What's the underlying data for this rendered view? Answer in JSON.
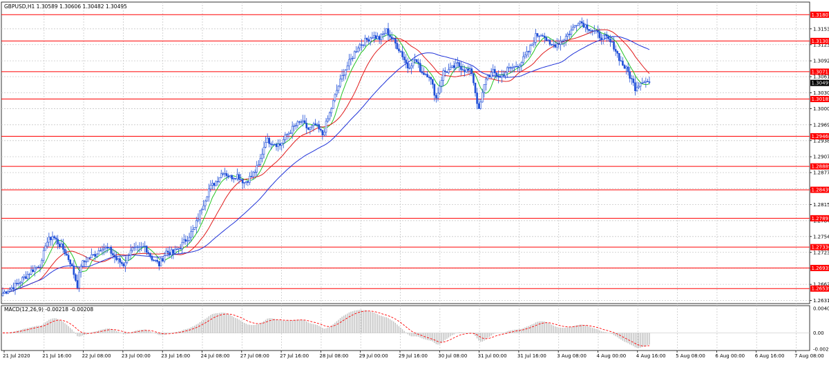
{
  "header": {
    "symbol_line": "GBPUSD,H1  1.30589 1.30606 1.30482 1.30495",
    "macd_line": "MACD(12,26,9) -0.00218 -0.00208"
  },
  "colors": {
    "candles": "#1f4fd8",
    "ma_fast": "#22c322",
    "ma_mid": "#e01b1b",
    "ma_slow": "#1f32d8",
    "levels": "#ff0000",
    "grid": "#c8c8c8",
    "macd_hist": "#c0c0c0",
    "macd_signal": "#ff0000",
    "current_price_tag": "#000000"
  },
  "chart_data": [
    {
      "type": "candlestick",
      "symbol": "GBPUSD",
      "timeframe": "H1",
      "last_bar": {
        "open": 1.30589,
        "high": 1.30606,
        "low": 1.30482,
        "close": 1.30495
      },
      "y_range": [
        1.2625,
        1.3205
      ],
      "price_axis_labels": [
        "1.31535",
        "1.31230",
        "1.30920",
        "1.30615",
        "1.30305",
        "1.30000",
        "1.29690",
        "1.29385",
        "1.29075",
        "1.28770",
        "1.28460",
        "1.28155",
        "1.27845",
        "1.27540",
        "1.27235",
        "1.26930",
        "1.26620",
        "1.26310"
      ],
      "price_axis_values": [
        1.31535,
        1.3123,
        1.3092,
        1.30615,
        1.30305,
        1.3,
        1.2969,
        1.29385,
        1.29075,
        1.2877,
        1.2846,
        1.28155,
        1.27845,
        1.2754,
        1.27235,
        1.2693,
        1.2662,
        1.2631
      ],
      "horizontal_levels": [
        "1.31807",
        "1.31302",
        "1.30711",
        "1.30185",
        "1.29468",
        "1.28889",
        "1.28439",
        "1.27891",
        "1.27336",
        "1.26935",
        "1.26539"
      ],
      "current_price_label": "1.30495",
      "x_labels": [
        "21 Jul 2020",
        "21 Jul 16:00",
        "22 Jul 08:00",
        "23 Jul 00:00",
        "23 Jul 16:00",
        "24 Jul 08:00",
        "27 Jul 08:00",
        "27 Jul 16:00",
        "28 Jul 08:00",
        "29 Jul 00:00",
        "29 Jul 16:00",
        "30 Jul 08:00",
        "31 Jul 00:00",
        "31 Jul 16:00",
        "3 Aug 08:00",
        "4 Aug 00:00",
        "4 Aug 16:00",
        "5 Aug 08:00",
        "6 Aug 00:00",
        "6 Aug 16:00",
        "7 Aug 08:00"
      ],
      "price_path": [
        [
          0,
          1.2645
        ],
        [
          8,
          1.2662
        ],
        [
          16,
          1.2688
        ],
        [
          22,
          1.2703
        ],
        [
          24,
          1.274
        ],
        [
          28,
          1.2755
        ],
        [
          34,
          1.273
        ],
        [
          38,
          1.2705
        ],
        [
          42,
          1.266
        ],
        [
          44,
          1.27
        ],
        [
          48,
          1.2712
        ],
        [
          52,
          1.272
        ],
        [
          56,
          1.2735
        ],
        [
          60,
          1.2728
        ],
        [
          64,
          1.271
        ],
        [
          68,
          1.27
        ],
        [
          72,
          1.273
        ],
        [
          76,
          1.2728
        ],
        [
          80,
          1.2735
        ],
        [
          84,
          1.2712
        ],
        [
          88,
          1.27
        ],
        [
          92,
          1.2725
        ],
        [
          96,
          1.2722
        ],
        [
          100,
          1.2735
        ],
        [
          104,
          1.2752
        ],
        [
          108,
          1.277
        ],
        [
          112,
          1.281
        ],
        [
          116,
          1.2845
        ],
        [
          120,
          1.286
        ],
        [
          124,
          1.288
        ],
        [
          128,
          1.2868
        ],
        [
          132,
          1.2872
        ],
        [
          136,
          1.2858
        ],
        [
          140,
          1.287
        ],
        [
          144,
          1.289
        ],
        [
          148,
          1.294
        ],
        [
          152,
          1.2935
        ],
        [
          156,
          1.293
        ],
        [
          160,
          1.295
        ],
        [
          164,
          1.2965
        ],
        [
          168,
          1.2975
        ],
        [
          172,
          1.296
        ],
        [
          176,
          1.2968
        ],
        [
          180,
          1.295
        ],
        [
          184,
          1.299
        ],
        [
          188,
          1.3035
        ],
        [
          192,
          1.307
        ],
        [
          196,
          1.3095
        ],
        [
          200,
          1.312
        ],
        [
          204,
          1.313
        ],
        [
          208,
          1.314
        ],
        [
          212,
          1.3135
        ],
        [
          216,
          1.315
        ],
        [
          220,
          1.313
        ],
        [
          224,
          1.311
        ],
        [
          228,
          1.308
        ],
        [
          232,
          1.3095
        ],
        [
          236,
          1.307
        ],
        [
          240,
          1.3065
        ],
        [
          244,
          1.302
        ],
        [
          248,
          1.307
        ],
        [
          252,
          1.3075
        ],
        [
          256,
          1.3085
        ],
        [
          260,
          1.3075
        ],
        [
          264,
          1.307
        ],
        [
          268,
          1.2995
        ],
        [
          272,
          1.306
        ],
        [
          276,
          1.307
        ],
        [
          280,
          1.306
        ],
        [
          284,
          1.3075
        ],
        [
          288,
          1.308
        ],
        [
          292,
          1.309
        ],
        [
          296,
          1.311
        ],
        [
          300,
          1.314
        ],
        [
          304,
          1.3145
        ],
        [
          308,
          1.312
        ],
        [
          312,
          1.3125
        ],
        [
          316,
          1.3135
        ],
        [
          320,
          1.315
        ],
        [
          324,
          1.317
        ],
        [
          328,
          1.316
        ],
        [
          332,
          1.315
        ],
        [
          336,
          1.314
        ],
        [
          340,
          1.3135
        ],
        [
          344,
          1.312
        ],
        [
          348,
          1.309
        ],
        [
          352,
          1.307
        ],
        [
          356,
          1.304
        ],
        [
          360,
          1.3055
        ],
        [
          364,
          1.305
        ]
      ],
      "moving_averages": [
        {
          "color": "#22c322"
        },
        {
          "color": "#e01b1b"
        },
        {
          "color": "#1f32d8"
        }
      ]
    },
    {
      "type": "macd",
      "params": "12,26,9",
      "main": -0.00218,
      "signal": -0.00208,
      "y_labels": [
        "0.00403",
        "0.00",
        "-0.00266"
      ],
      "y_values": [
        0.00403,
        0.0,
        -0.00266
      ],
      "y_range": [
        -0.0029,
        0.0045
      ]
    }
  ]
}
